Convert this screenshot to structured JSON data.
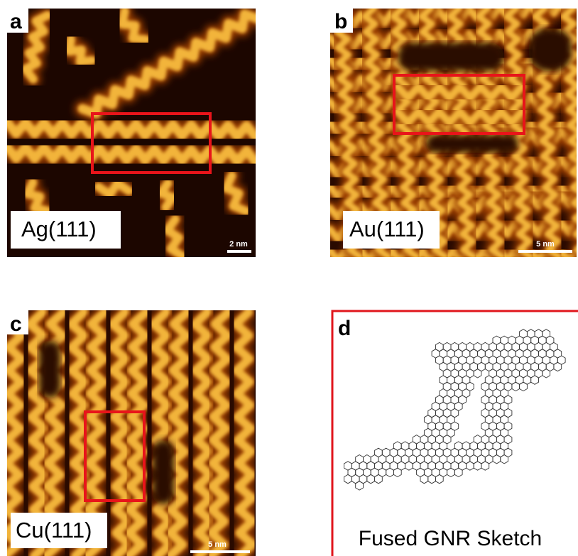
{
  "panels": [
    {
      "label": "a",
      "substrate": "Ag(111)",
      "scale_bar": "2 nm"
    },
    {
      "label": "b",
      "substrate": "Au(111)",
      "scale_bar": "5 nm"
    },
    {
      "label": "c",
      "substrate": "Cu(111)",
      "scale_bar": "5 nm"
    },
    {
      "label": "d",
      "caption": "Fused GNR Sketch"
    }
  ]
}
